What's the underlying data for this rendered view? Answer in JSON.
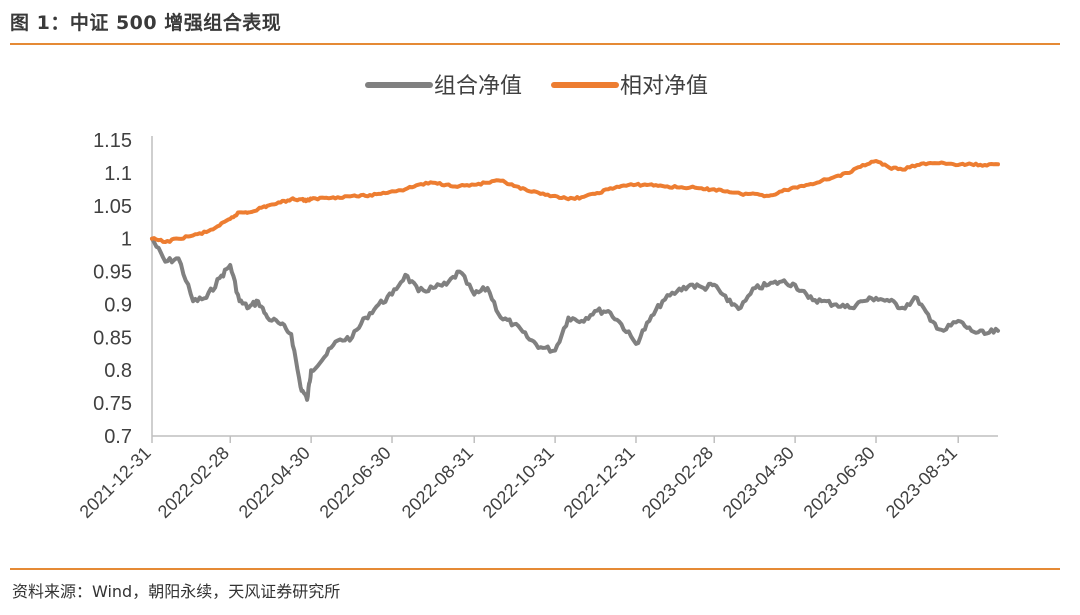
{
  "figure": {
    "title": "图 1：中证 500 增强组合表现",
    "source": "资料来源：Wind，朝阳永续，天风证券研究所"
  },
  "chart_data": {
    "type": "line",
    "colors": {
      "组合净值": "#808080",
      "相对净值": "#ed7d31",
      "axis": "#bfbfbf",
      "rule": "#e58a35"
    },
    "legend_position": "top-center",
    "grid": false,
    "ylim": [
      0.7,
      1.15
    ],
    "yticks": [
      "1.15",
      "1.1",
      "1.05",
      "1",
      "0.95",
      "0.9",
      "0.85",
      "0.8",
      "0.75",
      "0.7"
    ],
    "xticks": [
      "2021-12-31",
      "2022-02-28",
      "2022-04-30",
      "2022-06-30",
      "2022-08-31",
      "2022-10-31",
      "2022-12-31",
      "2023-02-28",
      "2023-04-30",
      "2023-06-30",
      "2023-08-31"
    ],
    "x": [
      "2021-12-31",
      "2022-01-10",
      "2022-01-20",
      "2022-01-31",
      "2022-02-10",
      "2022-02-20",
      "2022-02-28",
      "2022-03-07",
      "2022-03-14",
      "2022-03-21",
      "2022-03-28",
      "2022-04-07",
      "2022-04-15",
      "2022-04-22",
      "2022-04-27",
      "2022-04-30",
      "2022-05-10",
      "2022-05-20",
      "2022-05-31",
      "2022-06-10",
      "2022-06-20",
      "2022-06-30",
      "2022-07-10",
      "2022-07-20",
      "2022-07-31",
      "2022-08-10",
      "2022-08-20",
      "2022-08-31",
      "2022-09-10",
      "2022-09-20",
      "2022-09-30",
      "2022-10-10",
      "2022-10-20",
      "2022-10-31",
      "2022-11-10",
      "2022-11-20",
      "2022-11-30",
      "2022-12-10",
      "2022-12-20",
      "2022-12-31",
      "2023-01-10",
      "2023-01-20",
      "2023-01-31",
      "2023-02-10",
      "2023-02-20",
      "2023-02-28",
      "2023-03-10",
      "2023-03-20",
      "2023-03-31",
      "2023-04-10",
      "2023-04-20",
      "2023-04-30",
      "2023-05-10",
      "2023-05-20",
      "2023-05-31",
      "2023-06-10",
      "2023-06-20",
      "2023-06-30",
      "2023-07-10",
      "2023-07-20",
      "2023-07-31",
      "2023-08-10",
      "2023-08-20",
      "2023-08-31",
      "2023-09-10",
      "2023-09-20",
      "2023-09-30"
    ],
    "series": [
      {
        "name": "组合净值",
        "values": [
          1.0,
          0.965,
          0.97,
          0.905,
          0.91,
          0.94,
          0.96,
          0.905,
          0.895,
          0.905,
          0.88,
          0.87,
          0.855,
          0.775,
          0.755,
          0.8,
          0.82,
          0.845,
          0.85,
          0.88,
          0.9,
          0.915,
          0.945,
          0.92,
          0.925,
          0.93,
          0.95,
          0.915,
          0.925,
          0.88,
          0.87,
          0.85,
          0.835,
          0.83,
          0.88,
          0.875,
          0.89,
          0.89,
          0.87,
          0.84,
          0.875,
          0.905,
          0.92,
          0.93,
          0.925,
          0.93,
          0.905,
          0.895,
          0.925,
          0.93,
          0.935,
          0.93,
          0.91,
          0.905,
          0.9,
          0.895,
          0.905,
          0.91,
          0.905,
          0.895,
          0.91,
          0.875,
          0.86,
          0.875,
          0.86,
          0.855,
          0.86
        ]
      },
      {
        "name": "相对净值",
        "values": [
          1.0,
          0.995,
          1.0,
          1.005,
          1.01,
          1.02,
          1.03,
          1.04,
          1.04,
          1.045,
          1.05,
          1.055,
          1.06,
          1.06,
          1.058,
          1.06,
          1.062,
          1.063,
          1.065,
          1.065,
          1.068,
          1.072,
          1.075,
          1.082,
          1.085,
          1.082,
          1.08,
          1.082,
          1.085,
          1.088,
          1.08,
          1.073,
          1.068,
          1.065,
          1.06,
          1.063,
          1.068,
          1.075,
          1.08,
          1.082,
          1.082,
          1.08,
          1.078,
          1.078,
          1.075,
          1.075,
          1.072,
          1.068,
          1.068,
          1.065,
          1.072,
          1.078,
          1.082,
          1.088,
          1.095,
          1.1,
          1.112,
          1.118,
          1.108,
          1.105,
          1.112,
          1.115,
          1.115,
          1.112,
          1.113,
          1.112,
          1.113
        ]
      }
    ]
  }
}
